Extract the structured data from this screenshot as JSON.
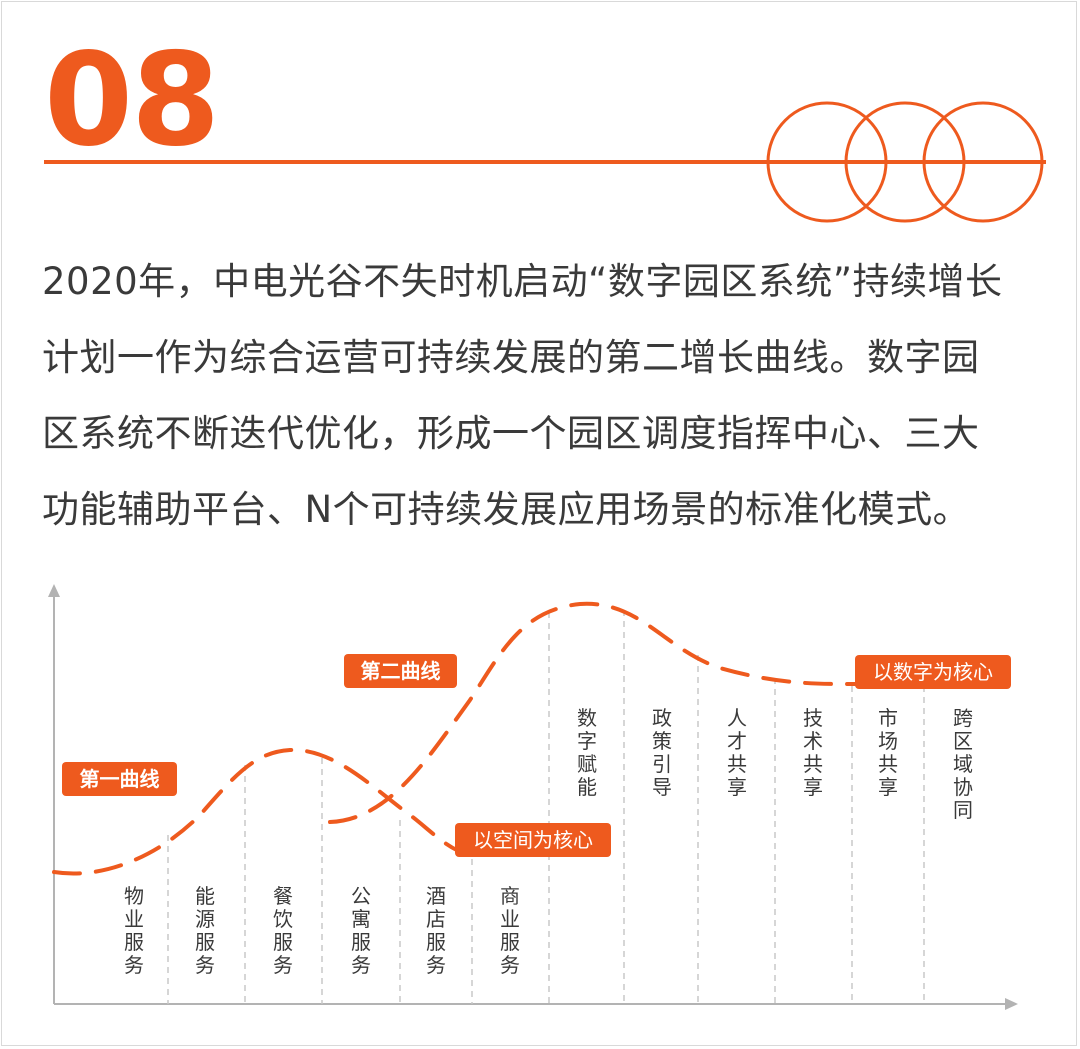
{
  "section_number": "08",
  "paragraph_lines": [
    "2020年，中电光谷不失时机启动“数字园区系统”持续增长",
    "计划一作为综合运营可持续发展的第二增长曲线。数字园",
    "区系统不断迭代优化，形成一个园区调度指挥中心、三大",
    "功能辅助平台、N个可持续发展应用场景的标准化模式。"
  ],
  "colors": {
    "accent": "#ee5a1e",
    "text": "#3a3a3a",
    "axis": "#b3b3b3"
  },
  "diagram": {
    "curves": [
      {
        "label": "第一曲线",
        "core": "以空间为核心"
      },
      {
        "label": "第二曲线",
        "core": "以数字为核心"
      }
    ],
    "first_curve_columns": [
      [
        "物",
        "业",
        "服",
        "务"
      ],
      [
        "能",
        "源",
        "服",
        "务"
      ],
      [
        "餐",
        "饮",
        "服",
        "务"
      ],
      [
        "公",
        "寓",
        "服",
        "务"
      ],
      [
        "酒",
        "店",
        "服",
        "务"
      ],
      [
        "商",
        "业",
        "服",
        "务"
      ]
    ],
    "second_curve_columns": [
      [
        "数",
        "字",
        "赋",
        "能"
      ],
      [
        "政",
        "策",
        "引",
        "导"
      ],
      [
        "人",
        "才",
        "共",
        "享"
      ],
      [
        "技",
        "术",
        "共",
        "享"
      ],
      [
        "市",
        "场",
        "共",
        "享"
      ],
      [
        "跨",
        "区",
        "域",
        "协",
        "同"
      ]
    ]
  }
}
